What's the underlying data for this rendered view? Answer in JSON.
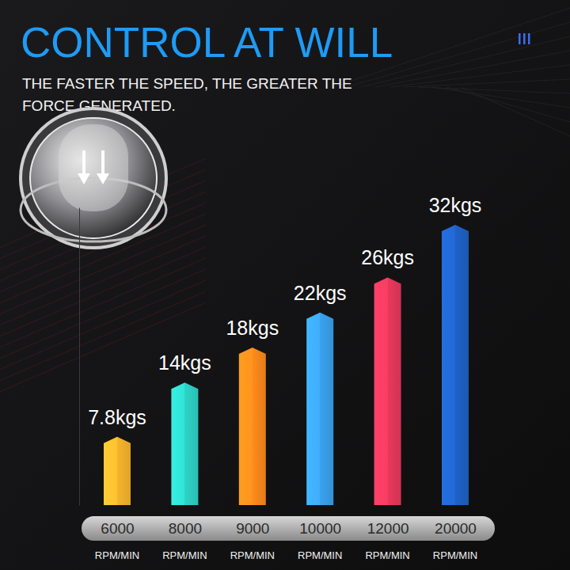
{
  "chart_data": {
    "type": "bar",
    "title": "CONTROL AT WILL",
    "subtitle": "THE FASTER THE SPEED, THE GREATER THE FORCE GENERATED.",
    "categories": [
      "6000",
      "8000",
      "9000",
      "10000",
      "12000",
      "20000"
    ],
    "xlabel": "RPM/MIN",
    "values": [
      7.8,
      14,
      18,
      22,
      26,
      32
    ],
    "value_labels": [
      "7.8kgs",
      "14kgs",
      "18kgs",
      "22kgs",
      "26kgs",
      "32kgs"
    ],
    "colors": [
      "#f7b52c",
      "#2fd3c9",
      "#ff8a1c",
      "#3aa2ee",
      "#e8395c",
      "#1f62c6"
    ],
    "ylim": [
      0,
      34
    ],
    "yticks": [],
    "tick_labels": "x",
    "data_labels": true
  }
}
